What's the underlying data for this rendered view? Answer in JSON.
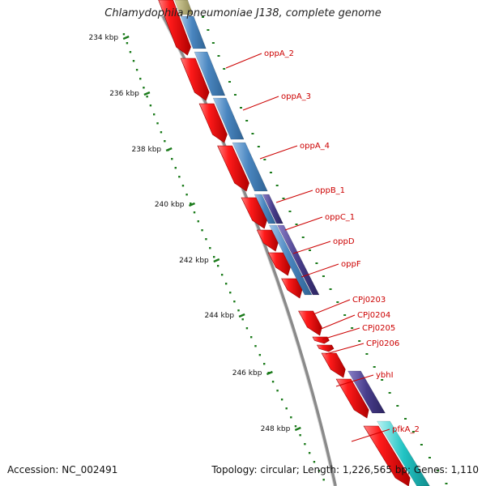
{
  "map": {
    "title": "Chlamydophila pneumoniae J138, complete genome",
    "accession": "Accession: NC_002491",
    "summary": "Topology: circular; Length: 1,226,565 bp; Genes: 1,110"
  },
  "colors": {
    "cds": "#ee1111",
    "backbone": "#8a8a8a",
    "ticks": "#1a7a1a",
    "label": "#cc0000",
    "feature_blue": "#4a86c0",
    "feature_purple": "#483d8b",
    "feature_cyan": "#22c4c4",
    "feature_olive": "#a6a060"
  },
  "ruler": [
    {
      "label": "234 kbp"
    },
    {
      "label": "236 kbp"
    },
    {
      "label": "238 kbp"
    },
    {
      "label": "240 kbp"
    },
    {
      "label": "242 kbp"
    },
    {
      "label": "244 kbp"
    },
    {
      "label": "246 kbp"
    },
    {
      "label": "248 kbp"
    }
  ],
  "genes": [
    {
      "label": "oppA_2"
    },
    {
      "label": "oppA_3"
    },
    {
      "label": "oppA_4"
    },
    {
      "label": "oppB_1"
    },
    {
      "label": "oppC_1"
    },
    {
      "label": "oppD"
    },
    {
      "label": "oppF"
    },
    {
      "label": "CPj0203"
    },
    {
      "label": "CPj0204"
    },
    {
      "label": "CPj0205"
    },
    {
      "label": "CPj0206"
    },
    {
      "label": "ybhI"
    },
    {
      "label": "pfkA_2"
    }
  ]
}
